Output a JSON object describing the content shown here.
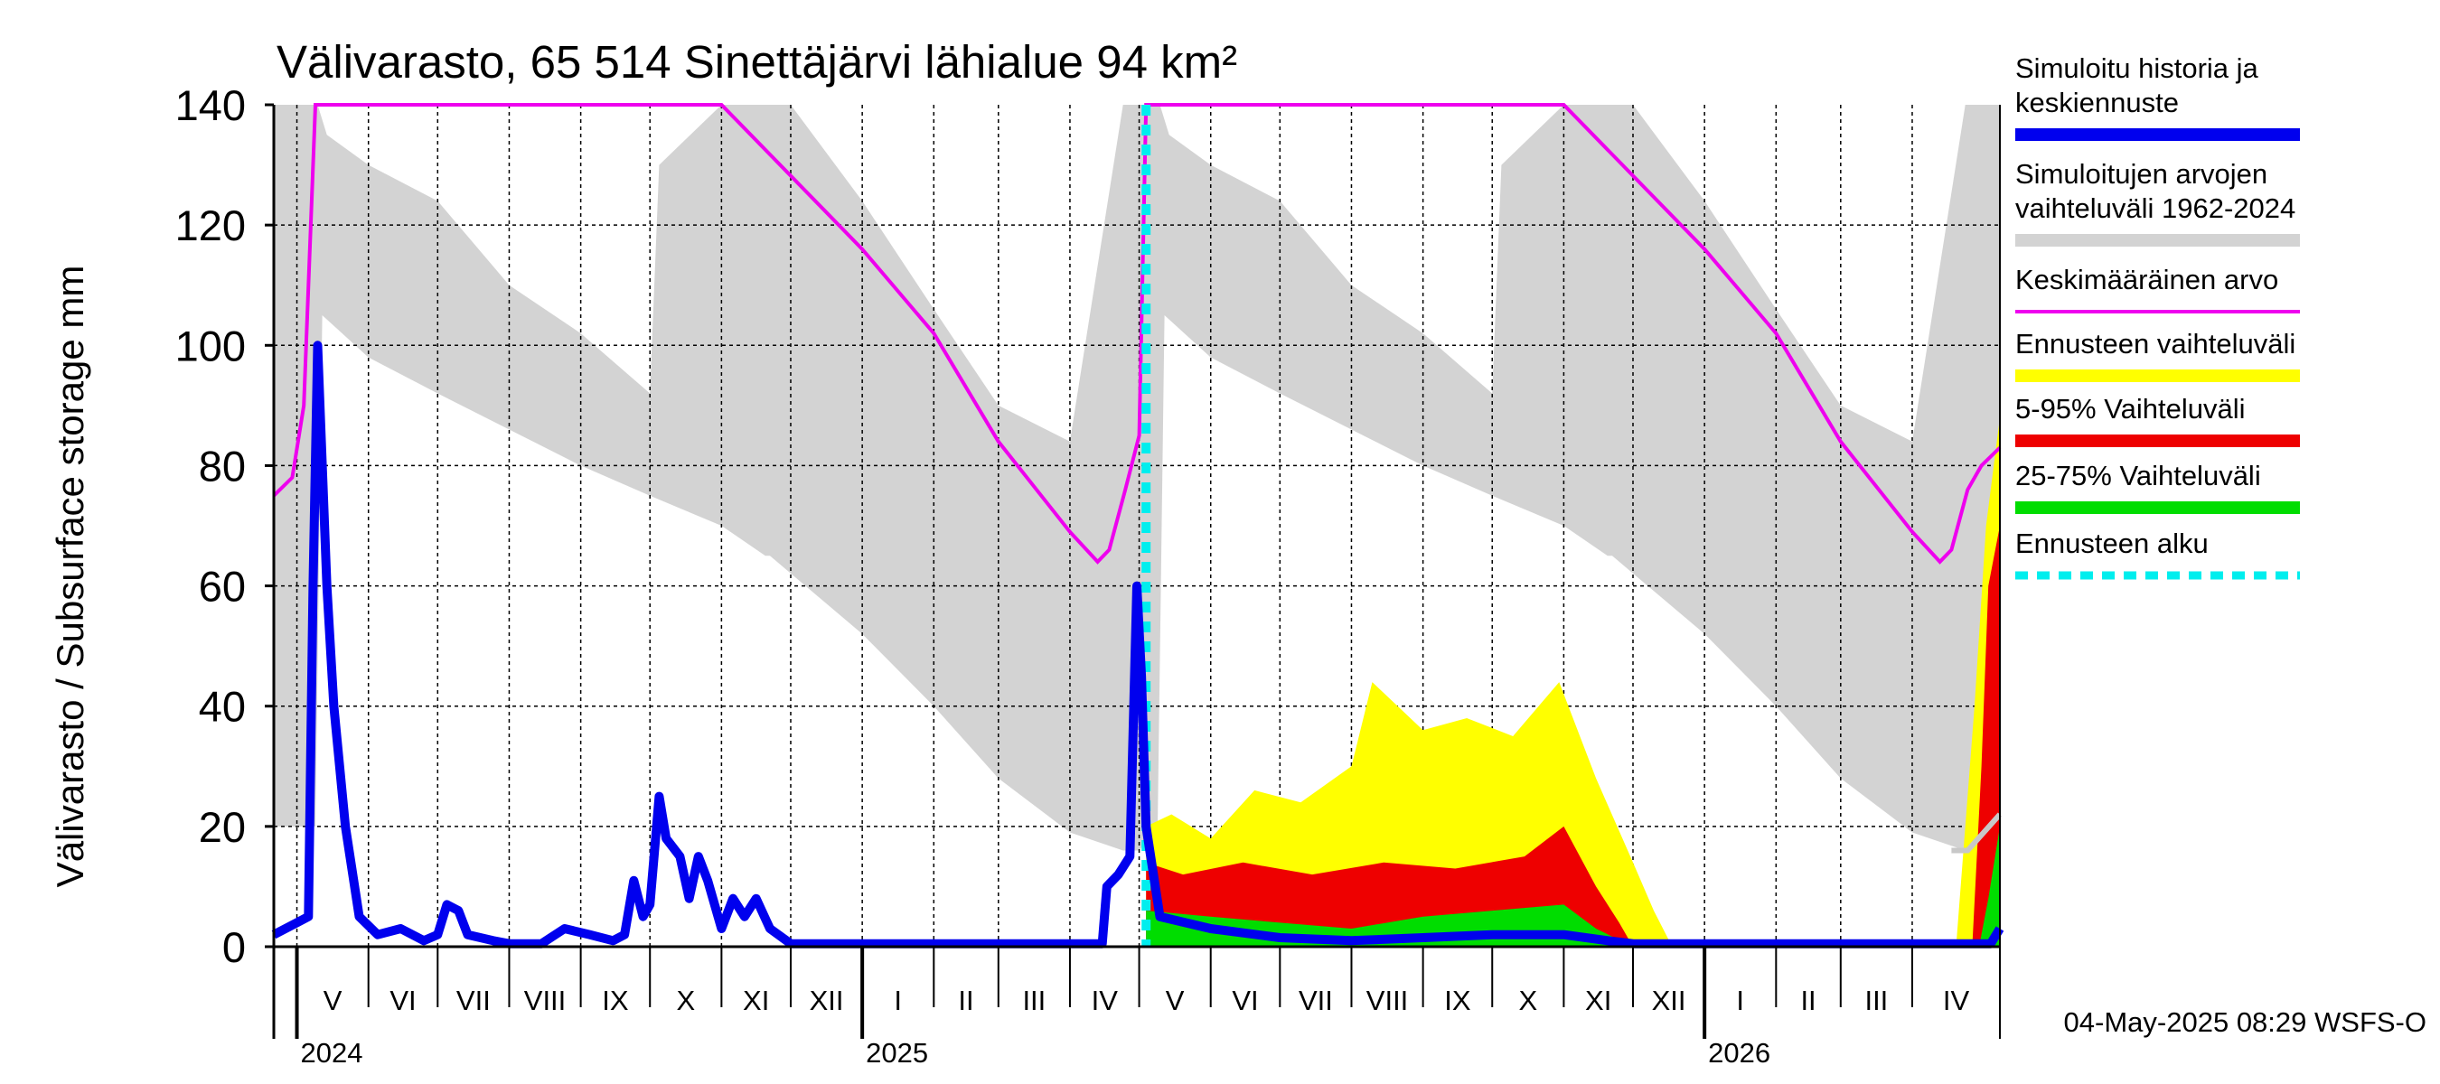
{
  "chart_data": {
    "type": "area",
    "title": "Välivarasto, 65 514 Sinettäjärvi lähialue 94 km²",
    "ylabel": "Välivarasto / Subsurface storage  mm",
    "ylim": [
      0,
      140
    ],
    "yticks": [
      0,
      20,
      40,
      60,
      80,
      100,
      120,
      140
    ],
    "grid": true,
    "legend_position": "right",
    "x_range": [
      "2024-04-21",
      "2026-05-09"
    ],
    "forecast_start": "2025-05-04",
    "months": [
      {
        "label": "V",
        "start": "2024-05-01"
      },
      {
        "label": "VI",
        "start": "2024-06-01"
      },
      {
        "label": "VII",
        "start": "2024-07-01"
      },
      {
        "label": "VIII",
        "start": "2024-08-01"
      },
      {
        "label": "IX",
        "start": "2024-09-01"
      },
      {
        "label": "X",
        "start": "2024-10-01"
      },
      {
        "label": "XI",
        "start": "2024-11-01"
      },
      {
        "label": "XII",
        "start": "2024-12-01"
      },
      {
        "label": "I",
        "start": "2025-01-01"
      },
      {
        "label": "II",
        "start": "2025-02-01"
      },
      {
        "label": "III",
        "start": "2025-03-01"
      },
      {
        "label": "IV",
        "start": "2025-04-01"
      },
      {
        "label": "V",
        "start": "2025-05-01"
      },
      {
        "label": "VI",
        "start": "2025-06-01"
      },
      {
        "label": "VII",
        "start": "2025-07-01"
      },
      {
        "label": "VIII",
        "start": "2025-08-01"
      },
      {
        "label": "IX",
        "start": "2025-09-01"
      },
      {
        "label": "X",
        "start": "2025-10-01"
      },
      {
        "label": "XI",
        "start": "2025-11-01"
      },
      {
        "label": "XII",
        "start": "2025-12-01"
      },
      {
        "label": "I",
        "start": "2026-01-01"
      },
      {
        "label": "II",
        "start": "2026-02-01"
      },
      {
        "label": "III",
        "start": "2026-03-01"
      },
      {
        "label": "IV",
        "start": "2026-04-01"
      }
    ],
    "years": [
      {
        "label": "2024",
        "date": "2024-05-01"
      },
      {
        "label": "2025",
        "date": "2025-01-01"
      },
      {
        "label": "2026",
        "date": "2026-01-01"
      }
    ],
    "colors": {
      "history": "#0000ee",
      "range": "#d3d3d3",
      "mean": "#ee00ee",
      "forecast_range": "#ffff00",
      "p5_95": "#ee0000",
      "p25_75": "#00dd00",
      "forecast_start": "#00eeee"
    },
    "series": [
      {
        "key": "range",
        "name": "Simuloitujen arvojen vaihteluväli 1962-2024",
        "upper": [
          [
            "2024-04-21",
            140
          ],
          [
            "2024-05-10",
            140
          ],
          [
            "2024-05-14",
            135
          ],
          [
            "2024-06-01",
            130
          ],
          [
            "2024-07-01",
            124
          ],
          [
            "2024-08-01",
            110
          ],
          [
            "2024-09-01",
            102
          ],
          [
            "2024-10-01",
            92
          ],
          [
            "2024-10-05",
            130
          ],
          [
            "2024-11-01",
            140
          ],
          [
            "2024-12-01",
            140
          ],
          [
            "2025-01-01",
            124
          ],
          [
            "2025-02-01",
            106
          ],
          [
            "2025-03-01",
            90
          ],
          [
            "2025-04-01",
            84
          ],
          [
            "2025-04-24",
            140
          ],
          [
            "2025-05-10",
            140
          ],
          [
            "2025-05-14",
            135
          ],
          [
            "2025-06-01",
            130
          ],
          [
            "2025-07-01",
            124
          ],
          [
            "2025-08-01",
            110
          ],
          [
            "2025-09-01",
            102
          ],
          [
            "2025-10-01",
            92
          ],
          [
            "2025-10-05",
            130
          ],
          [
            "2025-11-01",
            140
          ],
          [
            "2025-12-01",
            140
          ],
          [
            "2026-01-01",
            124
          ],
          [
            "2026-02-01",
            106
          ],
          [
            "2026-03-01",
            90
          ],
          [
            "2026-04-01",
            84
          ],
          [
            "2026-04-24",
            140
          ],
          [
            "2026-05-09",
            140
          ]
        ],
        "lower": [
          [
            "2024-04-21",
            20
          ],
          [
            "2024-05-09",
            20
          ],
          [
            "2024-05-12",
            105
          ],
          [
            "2024-06-01",
            98
          ],
          [
            "2024-07-01",
            92
          ],
          [
            "2024-08-01",
            86
          ],
          [
            "2024-09-01",
            80
          ],
          [
            "2024-10-01",
            75
          ],
          [
            "2024-11-01",
            70
          ],
          [
            "2024-11-20",
            65
          ],
          [
            "2024-11-22",
            65
          ],
          [
            "2025-01-01",
            52
          ],
          [
            "2025-02-01",
            40
          ],
          [
            "2025-03-01",
            28
          ],
          [
            "2025-04-01",
            19
          ],
          [
            "2025-04-24",
            16
          ],
          [
            "2025-05-01",
            16
          ],
          [
            "2025-05-09",
            20
          ],
          [
            "2025-05-12",
            105
          ],
          [
            "2025-06-01",
            98
          ],
          [
            "2025-07-01",
            92
          ],
          [
            "2025-08-01",
            86
          ],
          [
            "2025-09-01",
            80
          ],
          [
            "2025-10-01",
            75
          ],
          [
            "2025-11-01",
            70
          ],
          [
            "2025-11-20",
            65
          ],
          [
            "2025-11-22",
            65
          ],
          [
            "2026-01-01",
            52
          ],
          [
            "2026-02-01",
            40
          ],
          [
            "2026-03-01",
            28
          ],
          [
            "2026-04-01",
            19
          ],
          [
            "2026-04-24",
            16
          ],
          [
            "2026-05-09",
            16
          ]
        ]
      },
      {
        "key": "forecast_range",
        "name": "Ennusteen vaihteluväli",
        "upper": [
          [
            "2025-05-04",
            20
          ],
          [
            "2025-05-15",
            22
          ],
          [
            "2025-06-01",
            18
          ],
          [
            "2025-06-20",
            26
          ],
          [
            "2025-07-10",
            24
          ],
          [
            "2025-08-01",
            30
          ],
          [
            "2025-08-10",
            44
          ],
          [
            "2025-09-01",
            36
          ],
          [
            "2025-09-20",
            38
          ],
          [
            "2025-10-10",
            35
          ],
          [
            "2025-10-30",
            44
          ],
          [
            "2025-11-15",
            28
          ],
          [
            "2025-12-01",
            14
          ],
          [
            "2025-12-10",
            6
          ],
          [
            "2025-12-18",
            0
          ],
          [
            "2026-04-20",
            0
          ],
          [
            "2026-04-28",
            40
          ],
          [
            "2026-05-03",
            70
          ],
          [
            "2026-05-09",
            88
          ]
        ],
        "lower": [
          [
            "2025-05-04",
            0
          ],
          [
            "2026-05-09",
            0
          ]
        ]
      },
      {
        "key": "p5_95",
        "name": "5-95% Vaihteluväli",
        "upper": [
          [
            "2025-05-04",
            14
          ],
          [
            "2025-05-20",
            12
          ],
          [
            "2025-06-15",
            14
          ],
          [
            "2025-07-15",
            12
          ],
          [
            "2025-08-15",
            14
          ],
          [
            "2025-09-15",
            13
          ],
          [
            "2025-10-15",
            15
          ],
          [
            "2025-11-01",
            20
          ],
          [
            "2025-11-15",
            10
          ],
          [
            "2025-11-25",
            4
          ],
          [
            "2025-12-01",
            0
          ],
          [
            "2026-04-27",
            0
          ],
          [
            "2026-05-01",
            30
          ],
          [
            "2026-05-04",
            60
          ],
          [
            "2026-05-09",
            70
          ]
        ],
        "lower": [
          [
            "2025-05-04",
            0
          ],
          [
            "2026-05-09",
            0
          ]
        ]
      },
      {
        "key": "p25_75",
        "name": "25-75% Vaihteluväli",
        "upper": [
          [
            "2025-05-04",
            6
          ],
          [
            "2025-06-01",
            5
          ],
          [
            "2025-07-01",
            4
          ],
          [
            "2025-08-01",
            3
          ],
          [
            "2025-09-01",
            5
          ],
          [
            "2025-10-01",
            6
          ],
          [
            "2025-11-01",
            7
          ],
          [
            "2025-11-15",
            3
          ],
          [
            "2025-12-01",
            0
          ],
          [
            "2026-04-30",
            0
          ],
          [
            "2026-05-04",
            8
          ],
          [
            "2026-05-09",
            20
          ]
        ],
        "lower": [
          [
            "2025-05-04",
            0
          ],
          [
            "2026-05-09",
            0
          ]
        ]
      },
      {
        "key": "mean",
        "name": "Keskimääräinen arvo",
        "points": [
          [
            "2024-04-21",
            75
          ],
          [
            "2024-04-29",
            78
          ],
          [
            "2024-05-04",
            90
          ],
          [
            "2024-05-09",
            140
          ],
          [
            "2024-07-01",
            140
          ],
          [
            "2024-09-01",
            140
          ],
          [
            "2024-11-01",
            140
          ],
          [
            "2025-01-01",
            116
          ],
          [
            "2025-02-01",
            102
          ],
          [
            "2025-03-01",
            84
          ],
          [
            "2025-04-01",
            69
          ],
          [
            "2025-04-13",
            64
          ],
          [
            "2025-04-18",
            66
          ],
          [
            "2025-04-25",
            76
          ],
          [
            "2025-05-01",
            85
          ],
          [
            "2025-05-04",
            140
          ],
          [
            "2025-07-01",
            140
          ],
          [
            "2025-09-01",
            140
          ],
          [
            "2025-11-01",
            140
          ],
          [
            "2026-01-01",
            116
          ],
          [
            "2026-02-01",
            102
          ],
          [
            "2026-03-01",
            84
          ],
          [
            "2026-04-01",
            69
          ],
          [
            "2026-04-13",
            64
          ],
          [
            "2026-04-18",
            66
          ],
          [
            "2026-04-25",
            76
          ],
          [
            "2026-05-01",
            80
          ],
          [
            "2026-05-09",
            83
          ]
        ]
      },
      {
        "key": "forecast_mean",
        "name": "",
        "points": [
          [
            "2026-04-18",
            16
          ],
          [
            "2026-04-25",
            16
          ],
          [
            "2026-05-09",
            22
          ]
        ]
      },
      {
        "key": "history",
        "name": "Simuloitu historia ja keskiennuste",
        "points": [
          [
            "2024-04-21",
            2
          ],
          [
            "2024-05-01",
            4
          ],
          [
            "2024-05-06",
            5
          ],
          [
            "2024-05-08",
            60
          ],
          [
            "2024-05-10",
            100
          ],
          [
            "2024-05-14",
            60
          ],
          [
            "2024-05-17",
            40
          ],
          [
            "2024-05-22",
            20
          ],
          [
            "2024-05-28",
            5
          ],
          [
            "2024-06-05",
            2
          ],
          [
            "2024-06-15",
            3
          ],
          [
            "2024-06-25",
            1
          ],
          [
            "2024-07-01",
            2
          ],
          [
            "2024-07-05",
            7
          ],
          [
            "2024-07-10",
            6
          ],
          [
            "2024-07-14",
            2
          ],
          [
            "2024-07-25",
            1
          ],
          [
            "2024-08-01",
            0.5
          ],
          [
            "2024-08-15",
            0.5
          ],
          [
            "2024-08-25",
            3
          ],
          [
            "2024-09-05",
            2
          ],
          [
            "2024-09-15",
            1
          ],
          [
            "2024-09-20",
            2
          ],
          [
            "2024-09-24",
            11
          ],
          [
            "2024-09-28",
            5
          ],
          [
            "2024-10-01",
            7
          ],
          [
            "2024-10-05",
            25
          ],
          [
            "2024-10-08",
            18
          ],
          [
            "2024-10-14",
            15
          ],
          [
            "2024-10-18",
            8
          ],
          [
            "2024-10-22",
            15
          ],
          [
            "2024-10-26",
            11
          ],
          [
            "2024-11-01",
            3
          ],
          [
            "2024-11-06",
            8
          ],
          [
            "2024-11-11",
            5
          ],
          [
            "2024-11-16",
            8
          ],
          [
            "2024-11-22",
            3
          ],
          [
            "2024-12-01",
            0.5
          ],
          [
            "2025-04-15",
            0.5
          ],
          [
            "2025-04-17",
            10
          ],
          [
            "2025-04-22",
            12
          ],
          [
            "2025-04-27",
            15
          ],
          [
            "2025-04-30",
            60
          ],
          [
            "2025-05-02",
            45
          ],
          [
            "2025-05-04",
            20
          ],
          [
            "2025-05-10",
            5
          ],
          [
            "2025-06-01",
            3
          ],
          [
            "2025-07-01",
            1.5
          ],
          [
            "2025-08-01",
            1
          ],
          [
            "2025-09-01",
            1.5
          ],
          [
            "2025-10-01",
            2
          ],
          [
            "2025-11-01",
            2
          ],
          [
            "2025-11-20",
            1
          ],
          [
            "2025-12-01",
            0.5
          ],
          [
            "2026-05-05",
            0.5
          ],
          [
            "2026-05-09",
            3
          ]
        ]
      },
      {
        "key": "forecast_start",
        "name": "Ennusteen alku",
        "date": "2025-05-04"
      }
    ]
  },
  "legend": [
    {
      "key": "history",
      "lines": [
        "Simuloitu historia ja",
        "keskiennuste"
      ]
    },
    {
      "key": "range",
      "lines": [
        "Simuloitujen arvojen",
        "vaihteluväli 1962-2024"
      ]
    },
    {
      "key": "mean",
      "lines": [
        "Keskimääräinen arvo"
      ]
    },
    {
      "key": "forecast_range",
      "lines": [
        "Ennusteen vaihteluväli"
      ]
    },
    {
      "key": "p5_95",
      "lines": [
        "5-95% Vaihteluväli"
      ]
    },
    {
      "key": "p25_75",
      "lines": [
        "25-75% Vaihteluväli"
      ]
    },
    {
      "key": "forecast_start",
      "lines": [
        "Ennusteen alku"
      ]
    }
  ],
  "footer": "04-May-2025 08:29 WSFS-O"
}
